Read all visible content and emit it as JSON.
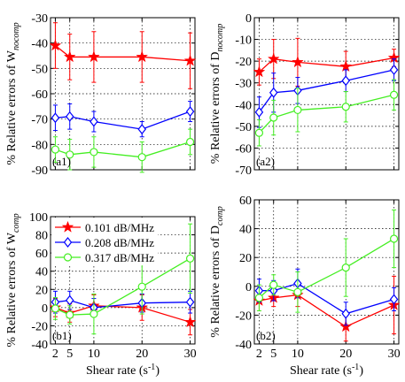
{
  "chart_data": [
    {
      "panel": "(a1)",
      "type": "line",
      "ylabel": "% Relative errors of W",
      "ylabel_sub": "nocomp",
      "ylim": [
        -90,
        -30
      ],
      "yticks": [
        -90,
        -80,
        -70,
        -60,
        -50,
        -40,
        -30
      ],
      "xlim": [
        1,
        31
      ],
      "xticks": [
        2,
        5,
        10,
        20,
        30
      ],
      "show_xtick_labels": false,
      "grid": true,
      "x": [
        2,
        5,
        10,
        20,
        30
      ],
      "series": [
        {
          "name": "0.101 dB/MHz",
          "color": "#ff0000",
          "marker": "star",
          "values": [
            -41,
            -45.5,
            -45.5,
            -45.5,
            -47
          ],
          "err": [
            9,
            9,
            10,
            10,
            11
          ]
        },
        {
          "name": "0.208 dB/MHz",
          "color": "#0000ff",
          "marker": "diamond",
          "values": [
            -69.5,
            -69,
            -71,
            -74,
            -67
          ],
          "err": [
            5,
            5,
            4,
            3,
            4
          ]
        },
        {
          "name": "0.317 dB/MHz",
          "color": "#44ee22",
          "marker": "circle",
          "values": [
            -82,
            -84,
            -83,
            -85,
            -79
          ],
          "err": [
            5,
            6,
            6,
            6,
            5
          ]
        }
      ]
    },
    {
      "panel": "(a2)",
      "type": "line",
      "ylabel": "% Relative errors of D",
      "ylabel_sub": "nocomp",
      "ylim": [
        -70,
        0
      ],
      "yticks": [
        -70,
        -60,
        -50,
        -40,
        -30,
        -20,
        -10,
        0
      ],
      "xlim": [
        1,
        31
      ],
      "xticks": [
        2,
        5,
        10,
        20,
        30
      ],
      "show_xtick_labels": false,
      "grid": true,
      "x": [
        2,
        5,
        10,
        20,
        30
      ],
      "series": [
        {
          "name": "0.101 dB/MHz",
          "color": "#ff0000",
          "marker": "star",
          "values": [
            -25,
            -19,
            -20.5,
            -22.5,
            -18.5
          ],
          "err": [
            6,
            9,
            11,
            7,
            4
          ]
        },
        {
          "name": "0.208 dB/MHz",
          "color": "#0000ff",
          "marker": "diamond",
          "values": [
            -43.5,
            -34.5,
            -33.5,
            -29,
            -24
          ],
          "err": [
            7,
            9,
            6,
            5,
            5
          ]
        },
        {
          "name": "0.317 dB/MHz",
          "color": "#44ee22",
          "marker": "circle",
          "values": [
            -53,
            -46,
            -42.5,
            -41,
            -35.5
          ],
          "err": [
            6,
            8,
            10,
            7,
            7
          ]
        }
      ]
    },
    {
      "panel": "(b1)",
      "type": "line",
      "ylabel": "% Relative errors of W",
      "ylabel_sub": "comp",
      "ylim": [
        -40,
        100
      ],
      "yticks": [
        -40,
        -20,
        0,
        20,
        40,
        60,
        80,
        100
      ],
      "xlim": [
        1,
        31
      ],
      "xticks": [
        2,
        5,
        10,
        20,
        30
      ],
      "show_xtick_labels": true,
      "xlabel": "Shear rate (s",
      "xlabel_sup": "-1",
      "xlabel_end": ")",
      "grid": true,
      "legend": "top-left",
      "x": [
        2,
        5,
        10,
        20,
        30
      ],
      "series": [
        {
          "name": "0.101 dB/MHz",
          "color": "#ff0000",
          "marker": "star",
          "values": [
            0,
            -6,
            2,
            0,
            -16
          ],
          "err": [
            10,
            10,
            12,
            14,
            14
          ]
        },
        {
          "name": "0.208 dB/MHz",
          "color": "#0000ff",
          "marker": "diamond",
          "values": [
            6,
            8,
            0,
            5,
            6
          ],
          "err": [
            12,
            10,
            10,
            10,
            12
          ]
        },
        {
          "name": "0.317 dB/MHz",
          "color": "#44ee22",
          "marker": "circle",
          "values": [
            -1,
            -8,
            -7,
            23,
            54
          ],
          "err": [
            12,
            10,
            22,
            30,
            38
          ]
        }
      ]
    },
    {
      "panel": "(b2)",
      "type": "line",
      "ylabel": "% Relative errors of D",
      "ylabel_sub": "comp",
      "ylim": [
        -40,
        60
      ],
      "yticks": [
        -40,
        -20,
        0,
        20,
        40,
        60
      ],
      "xlim": [
        1,
        31
      ],
      "xticks": [
        2,
        5,
        10,
        20,
        30
      ],
      "show_xtick_labels": true,
      "xlabel": "Shear rate (s",
      "xlabel_sup": "-1",
      "xlabel_end": ")",
      "grid": true,
      "x": [
        2,
        5,
        10,
        20,
        30
      ],
      "series": [
        {
          "name": "0.101 dB/MHz",
          "color": "#ff0000",
          "marker": "star",
          "values": [
            -10,
            -8,
            -6,
            -28,
            -13
          ],
          "err": [
            7,
            6,
            8,
            10,
            20
          ]
        },
        {
          "name": "0.208 dB/MHz",
          "color": "#0000ff",
          "marker": "diamond",
          "values": [
            -3,
            -3,
            2,
            -19,
            -9
          ],
          "err": [
            8,
            7,
            10,
            8,
            8
          ]
        },
        {
          "name": "0.317 dB/MHz",
          "color": "#44ee22",
          "marker": "circle",
          "values": [
            -8,
            1,
            -4,
            13,
            33
          ],
          "err": [
            9,
            7,
            14,
            20,
            20
          ]
        }
      ]
    }
  ]
}
